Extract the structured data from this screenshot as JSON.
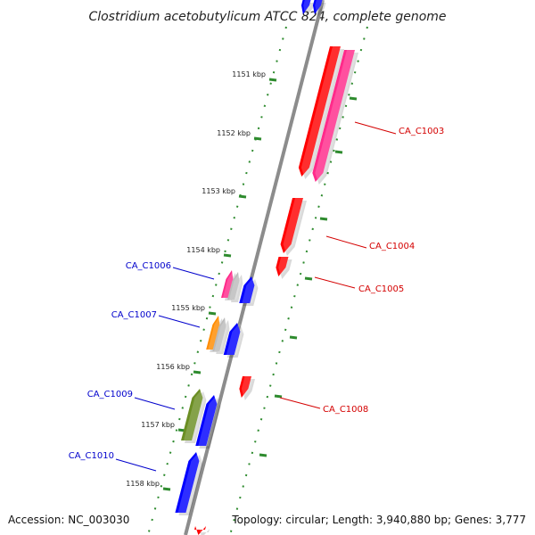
{
  "title": "Clostridium acetobutylicum ATCC 824, complete genome",
  "footer": {
    "accession": "Accession: NC_003030",
    "summary": "Topology: circular; Length: 3,940,880 bp; Genes: 3,777"
  },
  "colors": {
    "backbone": "#8c8c8c",
    "ruler": "#2e8b2e",
    "forward_label": "#d40000",
    "reverse_label": "#0000cc",
    "red": "#ff0000",
    "pink": "#ff2a8a",
    "blue": "#0000ff",
    "orange": "#ff8c00",
    "olive": "#6b8e23",
    "grey": "#bbbbbb"
  },
  "ruler_labels": [
    "1151 kbp",
    "1152 kbp",
    "1153 kbp",
    "1154 kbp",
    "1155 kbp",
    "1156 kbp",
    "1157 kbp",
    "1158 kbp"
  ],
  "gene_labels": {
    "forward": [
      "CA_C1003",
      "CA_C1004",
      "CA_C1005",
      "CA_C1008"
    ],
    "reverse": [
      "CA_C1006",
      "CA_C1007",
      "CA_C1009",
      "CA_C1010"
    ]
  }
}
